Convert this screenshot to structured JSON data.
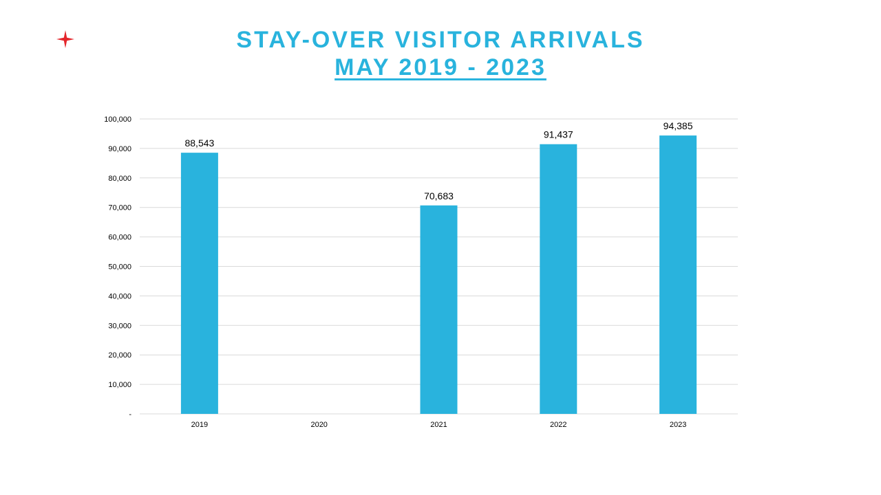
{
  "header": {
    "title_line1": "STAY-OVER VISITOR ARRIVALS",
    "title_line2": "MAY 2019 - 2023",
    "logo_icon": "red-star-icon",
    "logo_color": "#e4252b"
  },
  "chart_data": {
    "type": "bar",
    "title": "STAY-OVER VISITOR ARRIVALS MAY 2019 - 2023",
    "categories": [
      "2019",
      "2020",
      "2021",
      "2022",
      "2023"
    ],
    "values": [
      88543,
      null,
      70683,
      91437,
      94385
    ],
    "data_labels": [
      "88,543",
      "",
      "70,683",
      "91,437",
      "94,385"
    ],
    "xlabel": "",
    "ylabel": "",
    "ylim": [
      0,
      100000
    ],
    "y_ticks": [
      0,
      10000,
      20000,
      30000,
      40000,
      50000,
      60000,
      70000,
      80000,
      90000,
      100000
    ],
    "y_tick_labels": [
      "-",
      "10,000",
      "20,000",
      "30,000",
      "40,000",
      "50,000",
      "60,000",
      "70,000",
      "80,000",
      "90,000",
      "100,000"
    ],
    "grid": true,
    "legend": "none",
    "bar_color": "#29b3dd",
    "grid_color": "#d9d9d9"
  }
}
